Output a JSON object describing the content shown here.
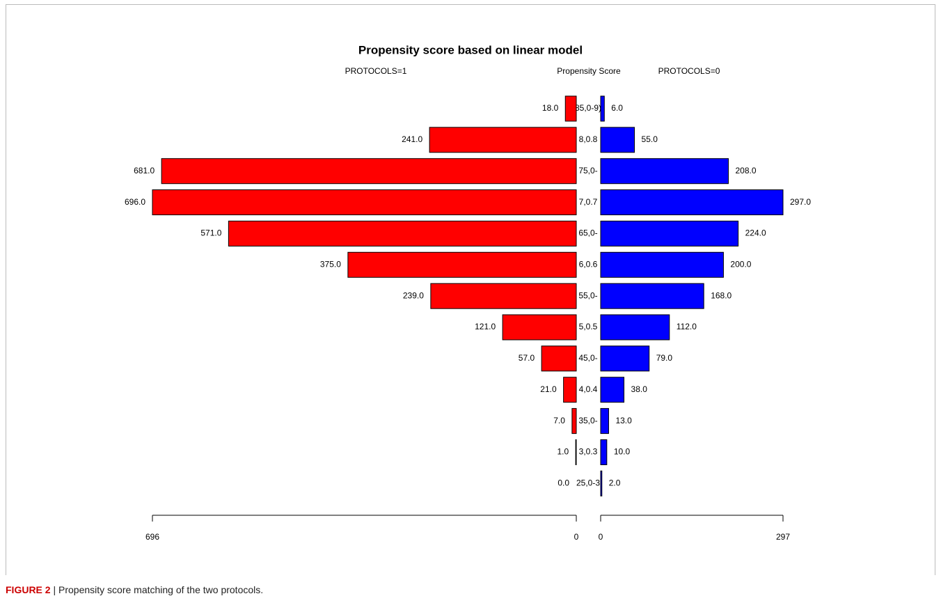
{
  "chart_data": {
    "type": "pyramid",
    "title": "Propensity score based on linear model",
    "category_label": "Propensity Score",
    "categories": [
      "85,0-9)",
      "8,0.8",
      "75,0-",
      "7,0.7",
      "65,0-",
      "6,0.6",
      "55,0-",
      "5,0.5",
      "45,0-",
      "4,0.4",
      "35,0-",
      "3,0.3",
      "25,0-3"
    ],
    "series": [
      {
        "name": "PROTOCOLS=1",
        "color": "#ff0000",
        "side": "left",
        "values": [
          18,
          241,
          681,
          696,
          571,
          375,
          239,
          121,
          57,
          21,
          7,
          1,
          0
        ],
        "value_labels": [
          "18.0",
          "241.0",
          "681.0",
          "696.0",
          "571.0",
          "375.0",
          "239.0",
          "121.0",
          "57.0",
          "21.0",
          "7.0",
          "1.0",
          "0.0"
        ],
        "xlim": [
          0,
          696
        ],
        "xticks": [
          0,
          696
        ]
      },
      {
        "name": "PROTOCOLS=0",
        "color": "#0000ff",
        "side": "right",
        "values": [
          6,
          55,
          208,
          297,
          224,
          200,
          168,
          112,
          79,
          38,
          13,
          10,
          2
        ],
        "value_labels": [
          "6.0",
          "55.0",
          "208.0",
          "297.0",
          "224.0",
          "200.0",
          "168.0",
          "112.0",
          "79.0",
          "38.0",
          "13.0",
          "10.0",
          "2.0"
        ],
        "xlim": [
          0,
          297
        ],
        "xticks": [
          0,
          297
        ]
      }
    ]
  },
  "caption": {
    "label": "FIGURE 2",
    "text": "Propensity score matching of the two protocols."
  }
}
